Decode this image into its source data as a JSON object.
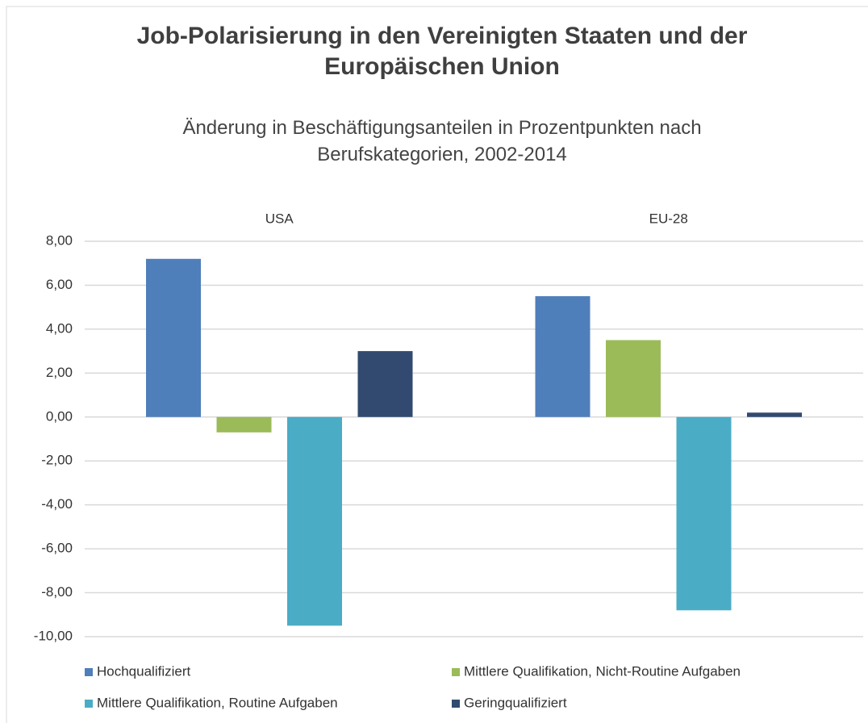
{
  "chart_data": {
    "type": "bar",
    "title": "Job-Polarisierung in den Vereinigten Staaten und der Europäischen Union",
    "subtitle": "Änderung in Beschäftigungsanteilen in Prozentpunkten nach Berufskategorien, 2002-2014",
    "categories": [
      "USA",
      "EU-28"
    ],
    "series": [
      {
        "name": "Hochqualifiziert",
        "color": "#4f7fba",
        "values": [
          7.2,
          5.5
        ]
      },
      {
        "name": "Mittlere Qualifikation, Nicht-Routine Aufgaben",
        "color": "#9bbb59",
        "values": [
          -0.7,
          3.5
        ]
      },
      {
        "name": "Mittlere Qualifikation, Routine Aufgaben",
        "color": "#4bacc6",
        "values": [
          -9.5,
          -8.8
        ]
      },
      {
        "name": "Geringqualifiziert",
        "color": "#324a6f",
        "values": [
          3.0,
          0.2
        ]
      }
    ],
    "ylim": [
      -10,
      8
    ],
    "yticks": [
      {
        "value": -10,
        "label": "-10,00"
      },
      {
        "value": -8,
        "label": "-8,00"
      },
      {
        "value": -6,
        "label": "-6,00"
      },
      {
        "value": -4,
        "label": "-4,00"
      },
      {
        "value": -2,
        "label": "-2,00"
      },
      {
        "value": 0,
        "label": "0,00"
      },
      {
        "value": 2,
        "label": "2,00"
      },
      {
        "value": 4,
        "label": "4,00"
      },
      {
        "value": 6,
        "label": "6,00"
      },
      {
        "value": 8,
        "label": "8,00"
      }
    ],
    "grid": true,
    "legend": "bottom"
  }
}
